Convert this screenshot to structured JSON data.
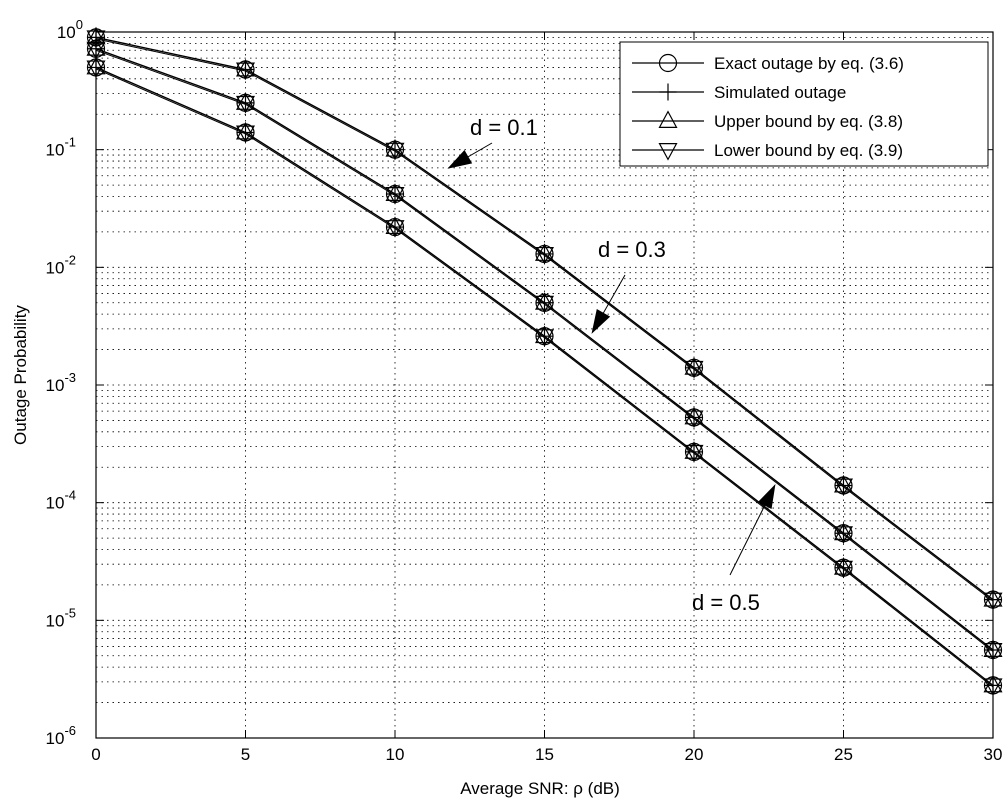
{
  "chart_data": {
    "type": "line",
    "xlabel": "Average SNR: ρ (dB)",
    "ylabel": "Outage Probability",
    "xlim": [
      0,
      30
    ],
    "ylim": [
      1e-06,
      1
    ],
    "yscale": "log",
    "grid": true,
    "x_ticks": [
      0,
      5,
      10,
      15,
      20,
      25,
      30
    ],
    "y_tick_exponents": [
      0,
      -1,
      -2,
      -3,
      -4,
      -5,
      -6
    ],
    "legend_position": "top-right",
    "legend": [
      {
        "label": "Exact outage by eq. (3.6)",
        "marker": "circle"
      },
      {
        "label": "Simulated outage",
        "marker": "plus"
      },
      {
        "label": "Upper bound by eq. (3.8)",
        "marker": "triangle-up"
      },
      {
        "label": "Lower bound  by eq. (3.9)",
        "marker": "triangle-down"
      }
    ],
    "x": [
      0,
      5,
      10,
      15,
      20,
      25,
      30
    ],
    "curves": [
      {
        "label": "d = 0.1",
        "values": [
          0.9,
          0.48,
          0.1,
          0.013,
          0.0014,
          0.00014,
          1.5e-05
        ]
      },
      {
        "label": "d = 0.3",
        "values": [
          0.72,
          0.25,
          0.042,
          0.005,
          0.00053,
          5.5e-05,
          5.6e-06
        ]
      },
      {
        "label": "d = 0.5",
        "values": [
          0.5,
          0.14,
          0.022,
          0.0026,
          0.00027,
          2.8e-05,
          2.8e-06
        ]
      }
    ],
    "annotations": [
      {
        "text": "d = 0.1",
        "arrow_to": [
          11.8,
          0.07
        ]
      },
      {
        "text": "d = 0.3",
        "arrow_to": [
          16.6,
          0.0028
        ]
      },
      {
        "text": "d = 0.5",
        "arrow_to": [
          22.7,
          0.00014
        ]
      }
    ]
  }
}
